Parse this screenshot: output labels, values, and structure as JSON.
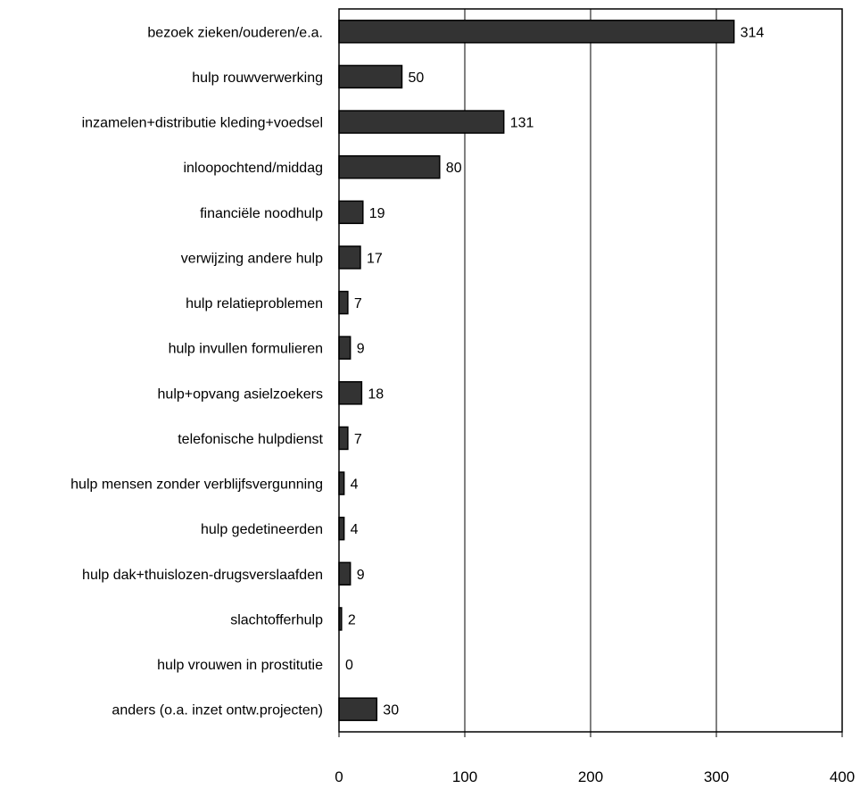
{
  "chart_data": {
    "type": "bar",
    "orientation": "horizontal",
    "categories": [
      "bezoek zieken/ouderen/e.a.",
      "hulp rouwverwerking",
      "inzamelen+distributie kleding+voedsel",
      "inloopochtend/middag",
      "financiële noodhulp",
      "verwijzing andere hulp",
      "hulp relatieproblemen",
      "hulp invullen formulieren",
      "hulp+opvang asielzoekers",
      "telefonische hulpdienst",
      "hulp mensen zonder verblijfsvergunning",
      "hulp gedetineerden",
      "hulp dak+thuislozen-drugsverslaafden",
      "slachtofferhulp",
      "hulp vrouwen in prostitutie",
      "anders (o.a. inzet ontw.projecten)"
    ],
    "values": [
      314,
      50,
      131,
      80,
      19,
      17,
      7,
      9,
      18,
      7,
      4,
      4,
      9,
      2,
      0,
      30
    ],
    "value_labels": [
      "314",
      "50",
      "131",
      "80",
      "19",
      "17",
      "7",
      "9",
      "18",
      "7",
      "4",
      "4",
      "9",
      "2",
      "0",
      "30"
    ],
    "xlim": [
      0,
      400
    ],
    "xticks": [
      0,
      100,
      200,
      300,
      400
    ],
    "xtick_labels": [
      "0",
      "100",
      "200",
      "300",
      "400"
    ],
    "grid": "vertical",
    "legend": "none",
    "bar_color": "#333333",
    "bar_edge_color": "#000000",
    "grid_color": "#000000",
    "title": "",
    "xlabel": "",
    "ylabel": ""
  }
}
